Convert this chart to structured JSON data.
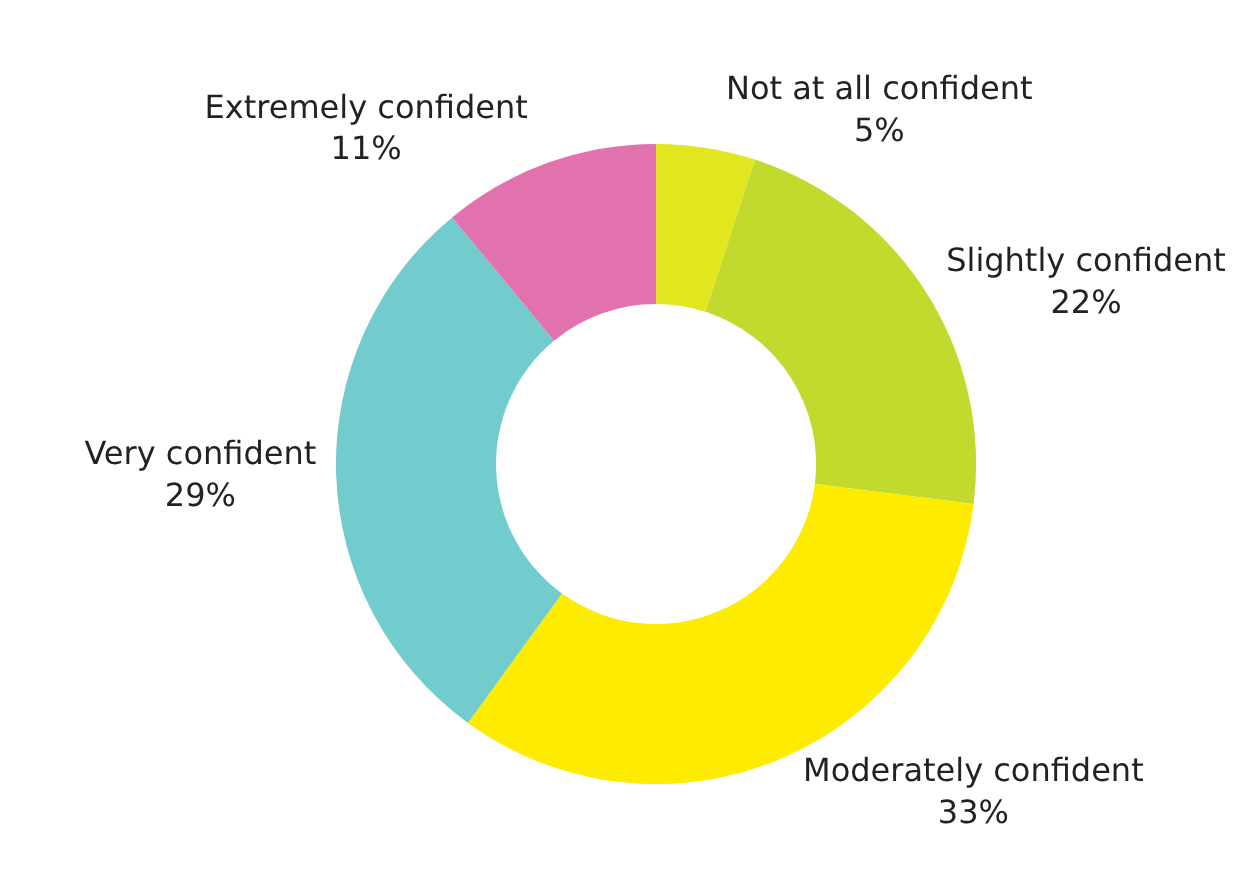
{
  "chart_data": {
    "type": "donut",
    "categories": [
      "Not at all confident",
      "Slightly confident",
      "Moderately confident",
      "Very confident",
      "Extremely confident"
    ],
    "values": [
      5,
      22,
      33,
      29,
      11
    ],
    "value_labels": [
      "5%",
      "22%",
      "33%",
      "29%",
      "11%"
    ],
    "colors": [
      "#e2e61e",
      "#c2d92e",
      "#fdeb00",
      "#72cbcd",
      "#e272ae"
    ],
    "legend": false
  }
}
